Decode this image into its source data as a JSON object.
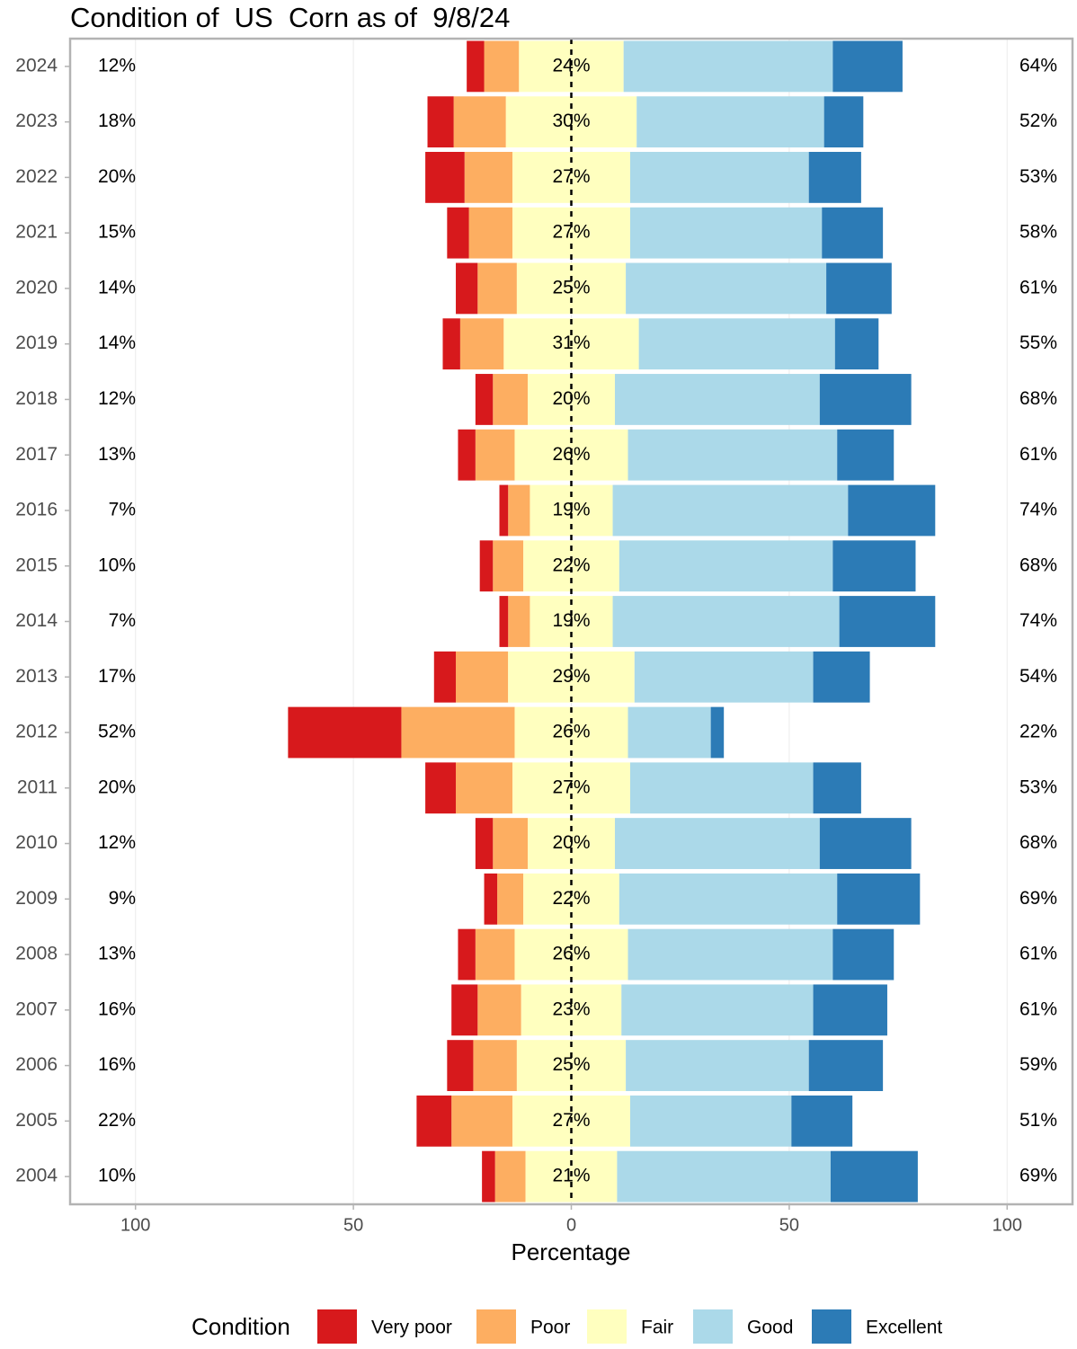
{
  "chart_data": {
    "type": "diverging_bar",
    "title": "Condition of  US  Corn as of  9/8/24",
    "x_label": "Percentage",
    "legend_title": "Condition",
    "categories": [
      "2024",
      "2023",
      "2022",
      "2021",
      "2020",
      "2019",
      "2018",
      "2017",
      "2016",
      "2015",
      "2014",
      "2013",
      "2012",
      "2011",
      "2010",
      "2009",
      "2008",
      "2007",
      "2006",
      "2005",
      "2004"
    ],
    "series": [
      {
        "name": "Very poor",
        "color": "#d7191c",
        "side": "low",
        "values": [
          4,
          6,
          9,
          5,
          5,
          4,
          4,
          4,
          2,
          3,
          2,
          5,
          26,
          7,
          4,
          3,
          4,
          6,
          6,
          8,
          3
        ]
      },
      {
        "name": "Poor",
        "color": "#fdae61",
        "side": "low",
        "values": [
          8,
          12,
          11,
          10,
          9,
          10,
          8,
          9,
          5,
          7,
          5,
          12,
          26,
          13,
          8,
          6,
          9,
          10,
          10,
          14,
          7
        ]
      },
      {
        "name": "Fair",
        "color": "#ffffbf",
        "side": "center",
        "values": [
          24,
          30,
          27,
          27,
          25,
          31,
          20,
          26,
          19,
          22,
          19,
          29,
          26,
          27,
          20,
          22,
          26,
          23,
          25,
          27,
          21
        ],
        "value_labels": [
          "24%",
          "30%",
          "27%",
          "27%",
          "25%",
          "31%",
          "20%",
          "26%",
          "19%",
          "22%",
          "19%",
          "29%",
          "26%",
          "27%",
          "20%",
          "22%",
          "26%",
          "23%",
          "25%",
          "27%",
          "21%"
        ]
      },
      {
        "name": "Good",
        "color": "#abd9e9",
        "side": "high",
        "values": [
          48,
          43,
          41,
          44,
          46,
          45,
          47,
          48,
          54,
          49,
          52,
          41,
          19,
          42,
          47,
          50,
          47,
          44,
          42,
          37,
          49
        ]
      },
      {
        "name": "Excellent",
        "color": "#2c7bb6",
        "side": "high",
        "values": [
          16,
          9,
          12,
          14,
          15,
          10,
          21,
          13,
          20,
          19,
          22,
          13,
          3,
          11,
          21,
          19,
          14,
          17,
          17,
          14,
          20
        ]
      }
    ],
    "low_labels": [
      "12%",
      "18%",
      "20%",
      "15%",
      "14%",
      "14%",
      "12%",
      "13%",
      "7%",
      "10%",
      "7%",
      "17%",
      "52%",
      "20%",
      "12%",
      "9%",
      "13%",
      "16%",
      "16%",
      "22%",
      "10%"
    ],
    "high_labels": [
      "64%",
      "52%",
      "53%",
      "58%",
      "61%",
      "55%",
      "68%",
      "61%",
      "74%",
      "68%",
      "74%",
      "54%",
      "22%",
      "53%",
      "68%",
      "69%",
      "61%",
      "61%",
      "59%",
      "51%",
      "69%"
    ],
    "xlim": [
      -115,
      115
    ],
    "xticks": [
      {
        "value": -100,
        "label": "100"
      },
      {
        "value": -50,
        "label": "50"
      },
      0,
      50,
      100
    ],
    "grid": true
  }
}
